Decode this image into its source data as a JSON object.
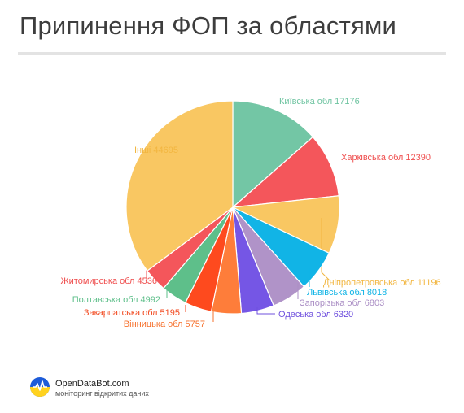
{
  "title": "Припинення ФОП за областями",
  "chart_data": {
    "type": "pie",
    "slices": [
      {
        "label": "Київська обл",
        "value": 17176,
        "color": "#73c6a5"
      },
      {
        "label": "Харківська обл",
        "value": 12390,
        "color": "#f4565b"
      },
      {
        "label": "Дніпропетровська обл",
        "value": 11196,
        "color": "#f9c762"
      },
      {
        "label": "Львівська обл",
        "value": 8018,
        "color": "#11b4e6"
      },
      {
        "label": "Запорізька обл",
        "value": 6803,
        "color": "#b093c8"
      },
      {
        "label": "Одеська обл",
        "value": 6320,
        "color": "#7556e5"
      },
      {
        "label": "Вінницька обл",
        "value": 5757,
        "color": "#fe7d3a"
      },
      {
        "label": "Закарпатська обл",
        "value": 5195,
        "color": "#fe4a1e"
      },
      {
        "label": "Полтавська обл",
        "value": 4992,
        "color": "#5ebf8a"
      },
      {
        "label": "Житомирська обл",
        "value": 4536,
        "color": "#f4565b"
      },
      {
        "label": "Інші",
        "value": 44695,
        "color": "#f9c762"
      }
    ],
    "label_colors": {
      "Київська обл": "#6fc4a1",
      "Харківська обл": "#ef4d4d",
      "Дніпропетровська обл": "#f2b640",
      "Львівська обл": "#10b4e6",
      "Запорізька обл": "#ab8fc5",
      "Одеська обл": "#6f50de",
      "Вінницька обл": "#f6722e",
      "Закарпатська обл": "#f24a20",
      "Полтавська обл": "#5ebf8a",
      "Житомирська обл": "#ef4d4d",
      "Інші": "#f2b640"
    }
  },
  "footer": {
    "brand": "OpenDataBot.com",
    "tagline": "моніторинг відкритих даних"
  }
}
